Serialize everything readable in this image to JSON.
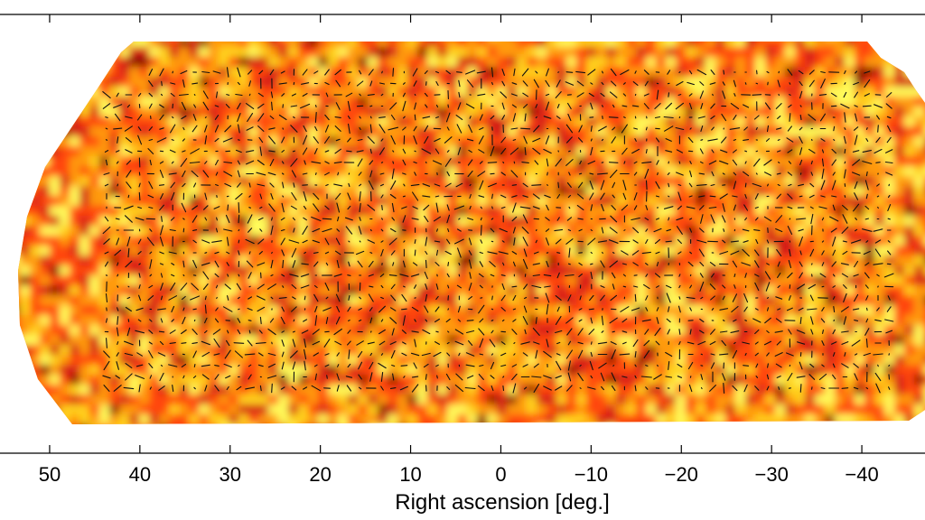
{
  "chart_data": {
    "type": "heatmap",
    "title": "",
    "xlabel": "Right ascension [deg.]",
    "ylabel": "",
    "xlim": [
      55.5,
      -47
    ],
    "x_ticks": [
      50,
      40,
      30,
      20,
      10,
      0,
      -10,
      -20,
      -30,
      -40
    ],
    "x_tick_labels": [
      "50",
      "40",
      "30",
      "20",
      "10",
      "0",
      "−10",
      "−20",
      "−30",
      "−40"
    ],
    "grid": false,
    "legend": "none",
    "colormap": [
      "#fffc5a",
      "#ffd21e",
      "#ff9a0e",
      "#ff4610",
      "#d61e12",
      "#8a0c06"
    ],
    "overlay": "headless polarization / shear sticks"
  }
}
